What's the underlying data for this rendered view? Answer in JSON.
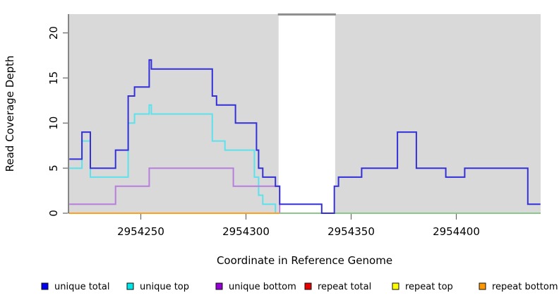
{
  "chart_data": {
    "type": "line",
    "style": "step",
    "title": "",
    "xlabel": "Coordinate in Reference Genome",
    "ylabel": "Read Coverage Depth",
    "xlim": [
      2954216,
      2954440
    ],
    "ylim": [
      0,
      22.1
    ],
    "grid": false,
    "plot_bg_color": "#d9d9d9",
    "x_tick_values": [
      2954250,
      2954300,
      2954350,
      2954400
    ],
    "x_tick_labels": [
      "2954250",
      "2954300",
      "2954350",
      "2954400"
    ],
    "y_tick_values": [
      0,
      5,
      10,
      15,
      20
    ],
    "y_tick_labels": [
      "0",
      "5",
      "10",
      "15",
      "20"
    ],
    "gap_region": {
      "x_start": 2954315.5,
      "x_end": 2954342.4,
      "fill": "#ffffff",
      "top_bar_color": "#8f8f8f"
    },
    "series": [
      {
        "name": "repeat total",
        "color": "#e60000",
        "x_end": 2954316,
        "steps": [
          [
            2954216,
            0
          ]
        ]
      },
      {
        "name": "repeat top",
        "color": "#ffff00",
        "x_end": 2954316,
        "steps": [
          [
            2954216,
            0
          ]
        ]
      },
      {
        "name": "unique top",
        "color": "#5ce2ec",
        "x_end": 2954440,
        "steps": [
          [
            2954216,
            5
          ],
          [
            2954222,
            8
          ],
          [
            2954226,
            4
          ],
          [
            2954244,
            10
          ],
          [
            2954247,
            11
          ],
          [
            2954254,
            12
          ],
          [
            2954255,
            11
          ],
          [
            2954284,
            8
          ],
          [
            2954290,
            7
          ],
          [
            2954304,
            4
          ],
          [
            2954306,
            2
          ],
          [
            2954308,
            1
          ],
          [
            2954314,
            0
          ]
        ]
      },
      {
        "name": "unique bottom",
        "color": "#b77edb",
        "x_end": 2954440,
        "steps": [
          [
            2954216,
            1
          ],
          [
            2954238,
            3
          ],
          [
            2954254,
            5
          ],
          [
            2954294,
            3
          ],
          [
            2954316,
            0
          ]
        ]
      },
      {
        "name": "repeat bottom",
        "color": "#ffa01e",
        "x_end": 2954316,
        "steps": [
          [
            2954216,
            0
          ]
        ]
      },
      {
        "name": "baseline after gap",
        "color": "#8cc88c",
        "x_end": 2954440,
        "steps": [
          [
            2954316,
            0
          ]
        ]
      },
      {
        "name": "unique total",
        "color": "#3330d8",
        "x_end": 2954440,
        "steps": [
          [
            2954216,
            6
          ],
          [
            2954222,
            9
          ],
          [
            2954226,
            5
          ],
          [
            2954238,
            7
          ],
          [
            2954244,
            13
          ],
          [
            2954247,
            14
          ],
          [
            2954254,
            17
          ],
          [
            2954255,
            16
          ],
          [
            2954284,
            13
          ],
          [
            2954286,
            12
          ],
          [
            2954295,
            10
          ],
          [
            2954305,
            7
          ],
          [
            2954306,
            5
          ],
          [
            2954308,
            4
          ],
          [
            2954314,
            3
          ],
          [
            2954316,
            1
          ],
          [
            2954336,
            0
          ],
          [
            2954342,
            3
          ],
          [
            2954344,
            4
          ],
          [
            2954355,
            5
          ],
          [
            2954372,
            9
          ],
          [
            2954381,
            5
          ],
          [
            2954395,
            4
          ],
          [
            2954404,
            5
          ],
          [
            2954434,
            1
          ]
        ]
      }
    ],
    "legend": {
      "position": "bottom",
      "items": [
        {
          "label": "unique total",
          "color": "#0000ee"
        },
        {
          "label": "unique top",
          "color": "#00e5e5"
        },
        {
          "label": "unique bottom",
          "color": "#9400d3"
        },
        {
          "label": "repeat total",
          "color": "#e60000"
        },
        {
          "label": "repeat top",
          "color": "#ffff00"
        },
        {
          "label": "repeat bottom",
          "color": "#ff9800"
        }
      ]
    }
  }
}
